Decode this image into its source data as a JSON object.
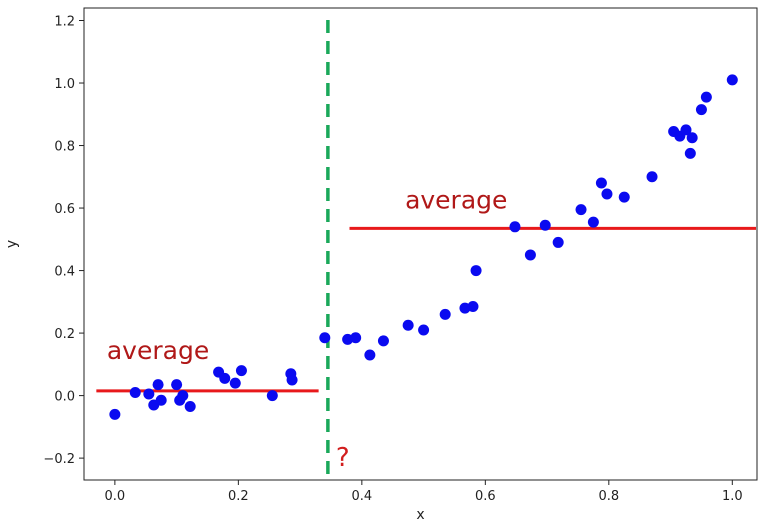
{
  "chart_data": {
    "type": "scatter",
    "title": "",
    "xlabel": "x",
    "ylabel": "y",
    "xlim": [
      -0.05,
      1.04
    ],
    "ylim": [
      -0.27,
      1.24
    ],
    "xticks": [
      0.0,
      0.2,
      0.4,
      0.6,
      0.8,
      1.0
    ],
    "xtick_labels": [
      "0.0",
      "0.2",
      "0.4",
      "0.6",
      "0.8",
      "1.0"
    ],
    "yticks": [
      -0.2,
      0.0,
      0.2,
      0.4,
      0.6,
      0.8,
      1.0,
      1.2
    ],
    "ytick_labels": [
      "−0.2",
      "0.0",
      "0.2",
      "0.4",
      "0.6",
      "0.8",
      "1.0",
      "1.2"
    ],
    "grid": false,
    "legend": "none",
    "colors": {
      "points": "#0a0af0",
      "average_line": "#e8191b",
      "split_line": "#1aa85a",
      "annotation": "#b01818",
      "question": "#d21e1e"
    },
    "points": {
      "x": [
        0.0,
        0.033,
        0.055,
        0.063,
        0.07,
        0.075,
        0.1,
        0.105,
        0.11,
        0.122,
        0.168,
        0.178,
        0.195,
        0.205,
        0.255,
        0.285,
        0.287,
        0.34,
        0.377,
        0.39,
        0.413,
        0.435,
        0.475,
        0.5,
        0.535,
        0.567,
        0.58,
        0.585,
        0.648,
        0.673,
        0.697,
        0.718,
        0.755,
        0.775,
        0.788,
        0.797,
        0.825,
        0.87,
        0.905,
        0.915,
        0.925,
        0.932,
        0.935,
        0.95,
        0.958,
        1.0
      ],
      "y": [
        -0.06,
        0.01,
        0.005,
        -0.03,
        0.035,
        -0.015,
        0.035,
        -0.015,
        0.0,
        -0.035,
        0.075,
        0.055,
        0.04,
        0.08,
        0.0,
        0.07,
        0.05,
        0.185,
        0.18,
        0.185,
        0.13,
        0.175,
        0.225,
        0.21,
        0.26,
        0.28,
        0.285,
        0.4,
        0.54,
        0.45,
        0.545,
        0.49,
        0.595,
        0.555,
        0.68,
        0.645,
        0.635,
        0.7,
        0.845,
        0.83,
        0.85,
        0.775,
        0.825,
        0.915,
        0.955,
        1.01
      ]
    },
    "split": {
      "x": 0.345,
      "label": "?"
    },
    "averages": [
      {
        "x_start": -0.03,
        "x_end": 0.33,
        "y": 0.015,
        "label": "average"
      },
      {
        "x_start": 0.38,
        "x_end": 1.04,
        "y": 0.535,
        "label": "average"
      }
    ]
  }
}
